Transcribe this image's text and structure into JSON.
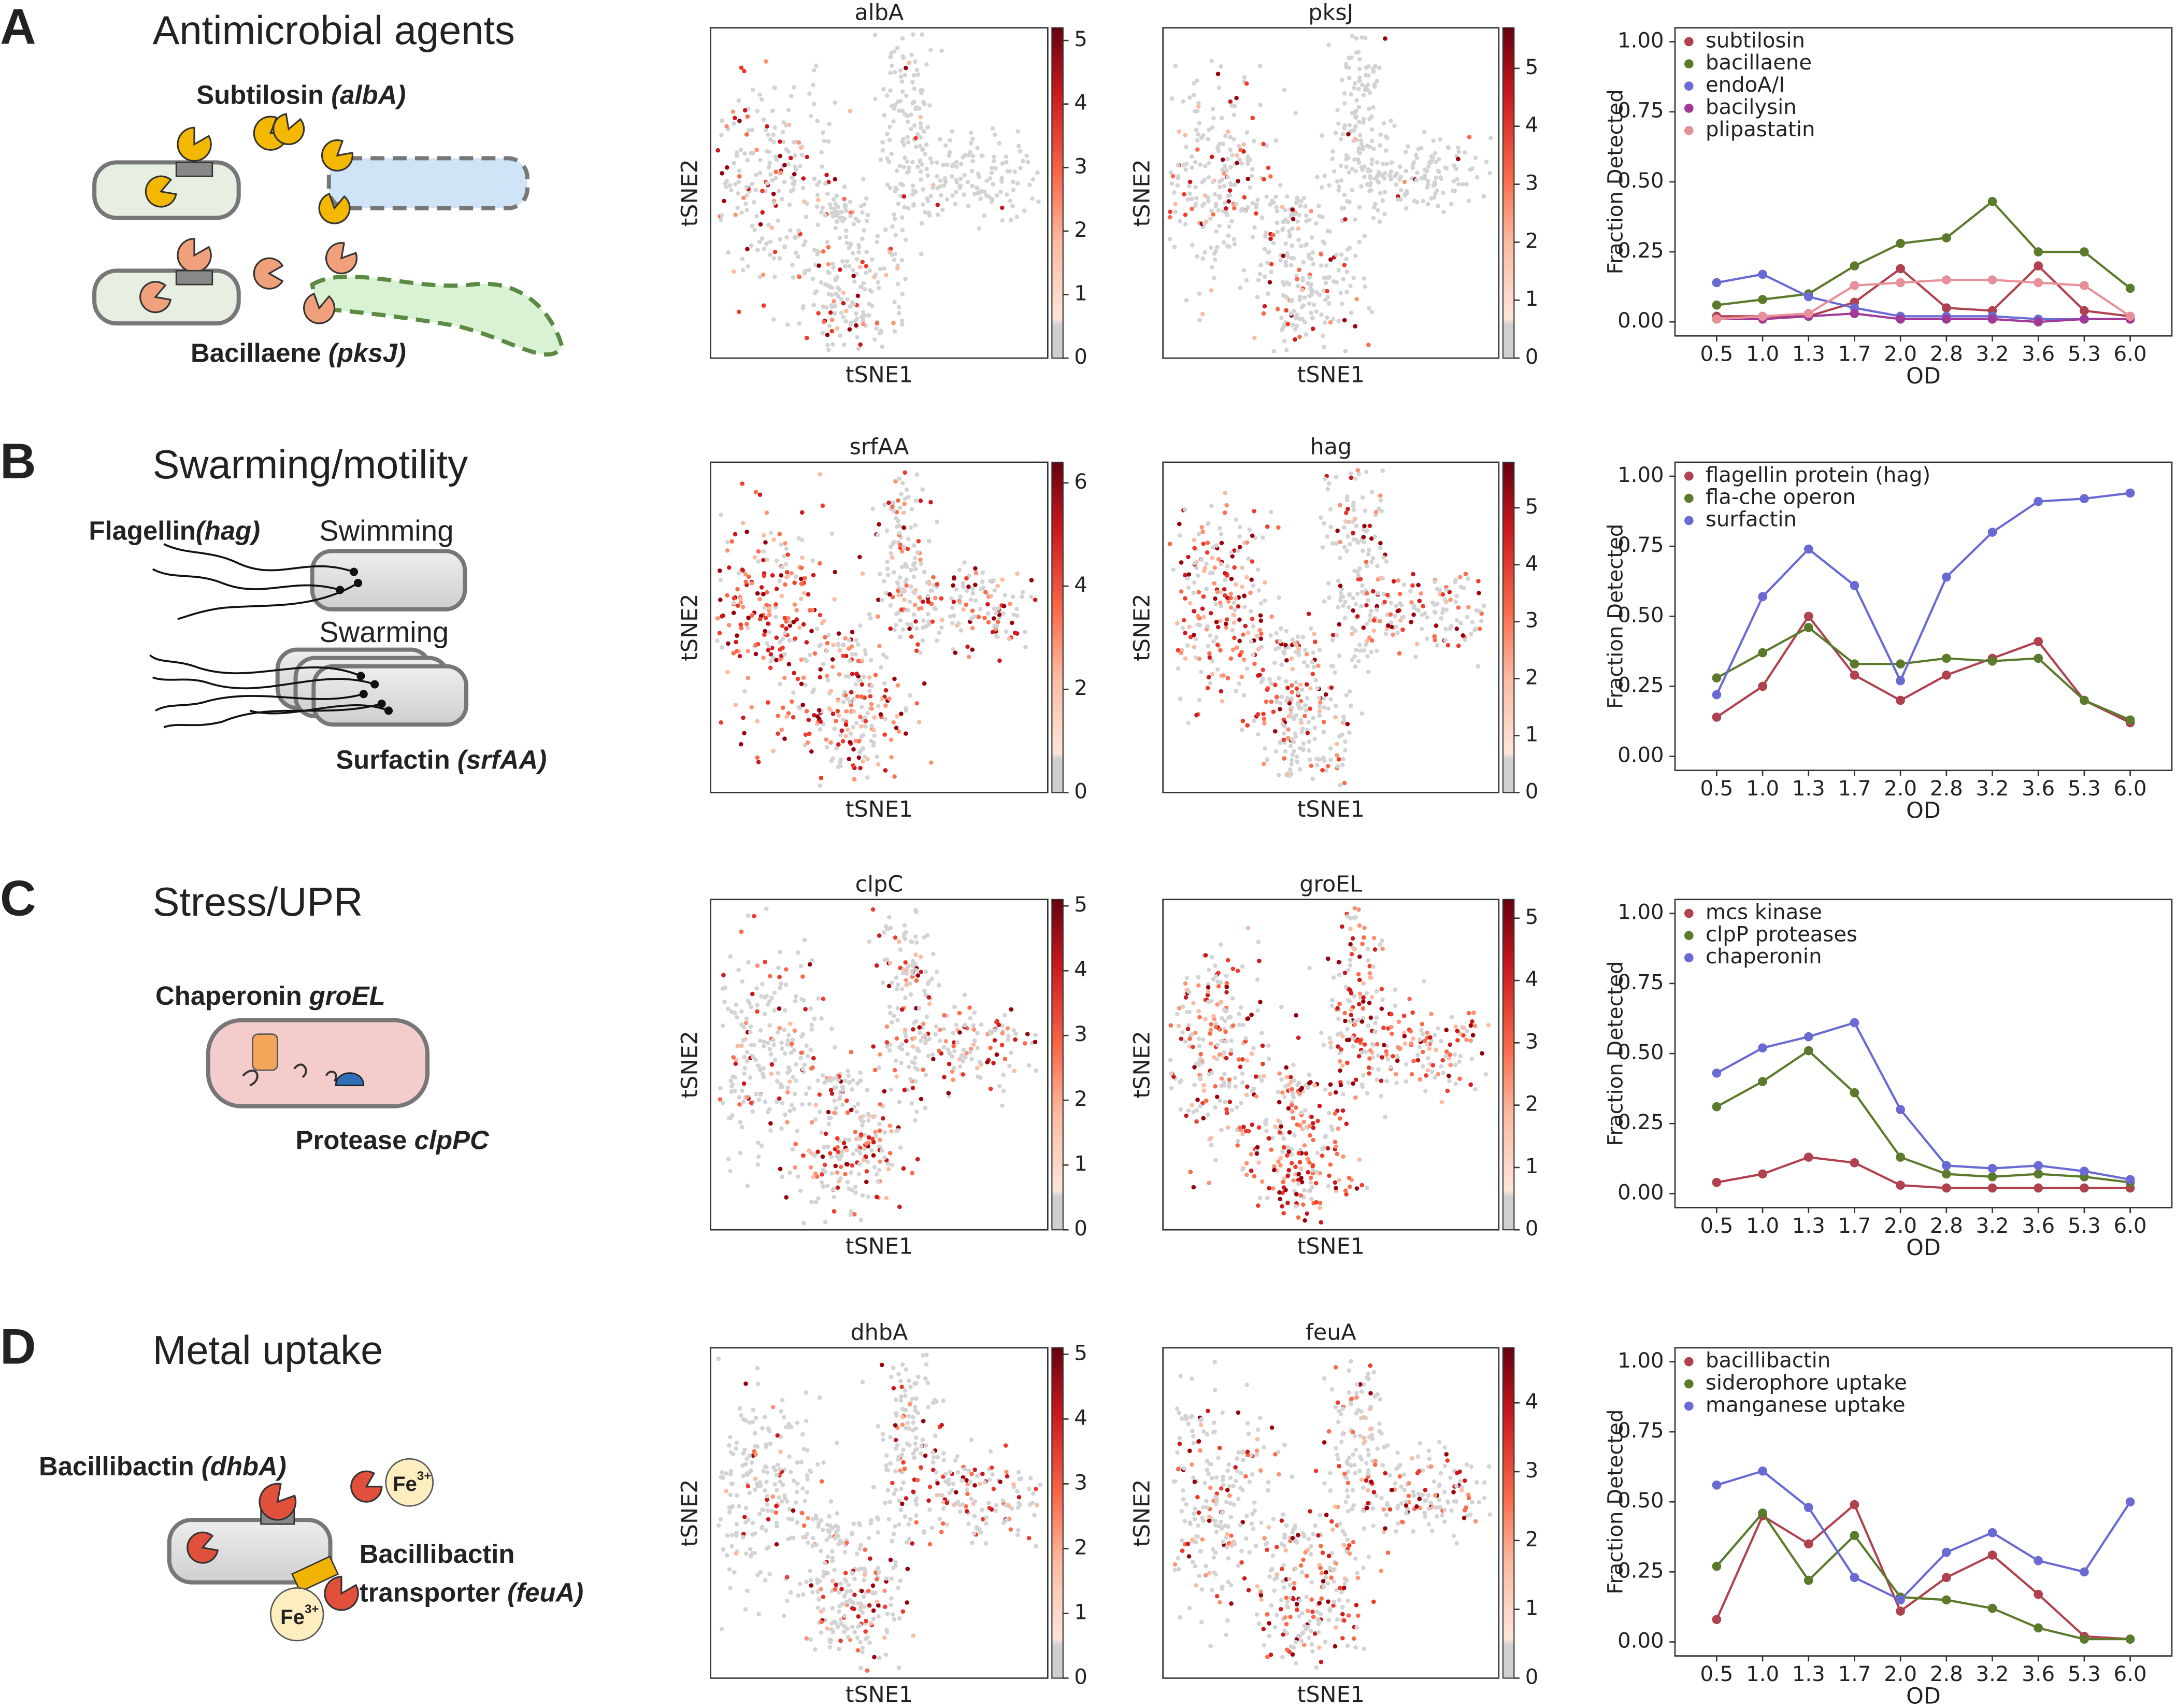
{
  "panels": [
    {
      "letter": "A",
      "title": "Antimicrobial agents",
      "diagram": [
        {
          "text": "Subtilosin",
          "gene": "(albA)"
        },
        {
          "text": "Bacillaene",
          "gene": "(pksJ)"
        }
      ],
      "embeddings": [
        {
          "title": "albA",
          "xlabel": "tSNE1",
          "ylabel": "tSNE2",
          "clim": [
            0,
            5.2
          ],
          "cticks": [
            0,
            1,
            2,
            3,
            4,
            5
          ]
        },
        {
          "title": "pksJ",
          "xlabel": "tSNE1",
          "ylabel": "tSNE2",
          "clim": [
            0,
            5.7
          ],
          "cticks": [
            0,
            1,
            2,
            3,
            4,
            5
          ]
        }
      ]
    },
    {
      "letter": "B",
      "title": "Swarming/motility",
      "diagram": [
        {
          "text": "Flagellin",
          "gene": "(hag)"
        },
        {
          "text": "Swimming"
        },
        {
          "text": "Swarming"
        },
        {
          "text": "Surfactin",
          "gene": "(srfAA)"
        }
      ],
      "embeddings": [
        {
          "title": "srfAA",
          "xlabel": "tSNE1",
          "ylabel": "tSNE2",
          "clim": [
            0,
            6.4
          ],
          "cticks": [
            0,
            2,
            4,
            6
          ]
        },
        {
          "title": "hag",
          "xlabel": "tSNE1",
          "ylabel": "tSNE2",
          "clim": [
            0,
            5.8
          ],
          "cticks": [
            0,
            1,
            2,
            3,
            4,
            5
          ]
        }
      ]
    },
    {
      "letter": "C",
      "title": "Stress/UPR",
      "diagram": [
        {
          "text": "Chaperonin",
          "gene": "groEL"
        },
        {
          "text": "Protease",
          "gene": "clpPC"
        }
      ],
      "embeddings": [
        {
          "title": "clpC",
          "xlabel": "tSNE1",
          "ylabel": "tSNE2",
          "clim": [
            0,
            5.1
          ],
          "cticks": [
            0,
            1,
            2,
            3,
            4,
            5
          ]
        },
        {
          "title": "groEL",
          "xlabel": "tSNE1",
          "ylabel": "tSNE2",
          "clim": [
            0,
            5.3
          ],
          "cticks": [
            0,
            1,
            2,
            3,
            4,
            5
          ]
        }
      ]
    },
    {
      "letter": "D",
      "title": "Metal uptake",
      "diagram": [
        {
          "text": "Bacillibactin",
          "gene": "(dhbA)"
        },
        {
          "base": "Fe",
          "sup": "3+"
        },
        {
          "base": "Fe",
          "sup": "3+"
        },
        {
          "line1": "Bacillibactin",
          "text": "transporter",
          "gene": "(feuA)"
        }
      ],
      "embeddings": [
        {
          "title": "dhbA",
          "xlabel": "tSNE1",
          "ylabel": "tSNE2",
          "clim": [
            0,
            5.1
          ],
          "cticks": [
            0,
            1,
            2,
            3,
            4,
            5
          ]
        },
        {
          "title": "feuA",
          "xlabel": "tSNE1",
          "ylabel": "tSNE2",
          "clim": [
            0,
            4.8
          ],
          "cticks": [
            0,
            1,
            2,
            3,
            4
          ]
        }
      ]
    }
  ],
  "chart_data": [
    {
      "type": "line",
      "xlabel": "OD",
      "ylabel": "Fraction Detected",
      "legend": "upper left",
      "categories": [
        "0.5",
        "1.0",
        "1.3",
        "1.7",
        "2.0",
        "2.8",
        "3.2",
        "3.6",
        "5.3",
        "6.0"
      ],
      "ylim": [
        -0.05,
        1.05
      ],
      "yticks": [
        {
          "value": 0,
          "label": "0.00"
        },
        0.25,
        {
          "value": 0.5,
          "label": "0.50"
        },
        0.75,
        {
          "value": 1,
          "label": "1.00"
        }
      ],
      "series": [
        {
          "name": "subtilosin",
          "color": "#b0414e",
          "values": [
            0.02,
            0.02,
            0.02,
            0.07,
            0.19,
            0.05,
            0.04,
            0.2,
            0.04,
            0.02
          ]
        },
        {
          "name": "bacillaene",
          "color": "#5b7a2c",
          "values": [
            0.06,
            0.08,
            0.1,
            0.2,
            0.28,
            0.3,
            0.43,
            0.25,
            0.25,
            0.12
          ]
        },
        {
          "name": "endoA/I",
          "color": "#6a6ad4",
          "values": [
            0.14,
            0.17,
            0.09,
            0.05,
            0.02,
            0.02,
            0.02,
            0.01,
            0.01,
            0.01
          ]
        },
        {
          "name": "bacilysin",
          "color": "#a03a98",
          "values": [
            0.01,
            0.01,
            0.02,
            0.03,
            0.01,
            0.01,
            0.01,
            0.0,
            0.01,
            0.01
          ]
        },
        {
          "name": "plipastatin",
          "color": "#e8909a",
          "values": [
            0.01,
            0.02,
            0.03,
            0.13,
            0.14,
            0.15,
            0.15,
            0.14,
            0.13,
            0.02
          ]
        }
      ]
    },
    {
      "type": "line",
      "xlabel": "OD",
      "ylabel": "Fraction Detected",
      "legend": "upper left",
      "categories": [
        "0.5",
        "1.0",
        "1.3",
        "1.7",
        "2.0",
        "2.8",
        "3.2",
        "3.6",
        "5.3",
        "6.0"
      ],
      "ylim": [
        -0.05,
        1.05
      ],
      "yticks": [
        {
          "value": 0,
          "label": "0.00"
        },
        0.25,
        {
          "value": 0.5,
          "label": "0.50"
        },
        0.75,
        {
          "value": 1,
          "label": "1.00"
        }
      ],
      "series": [
        {
          "name": "flagellin protein (hag)",
          "color": "#b0414e",
          "values": [
            0.14,
            0.25,
            0.5,
            0.29,
            0.2,
            0.29,
            0.35,
            0.41,
            0.2,
            0.12
          ]
        },
        {
          "name": "fla-che operon",
          "color": "#5b7a2c",
          "values": [
            0.28,
            0.37,
            0.46,
            0.33,
            0.33,
            0.35,
            0.34,
            0.35,
            0.2,
            0.13
          ]
        },
        {
          "name": "surfactin",
          "color": "#6a6ad4",
          "values": [
            0.22,
            0.57,
            0.74,
            0.61,
            0.27,
            0.64,
            0.8,
            0.91,
            0.92,
            0.94
          ]
        }
      ]
    },
    {
      "type": "line",
      "xlabel": "OD",
      "ylabel": "Fraction Detected",
      "legend": "upper left",
      "categories": [
        "0.5",
        "1.0",
        "1.3",
        "1.7",
        "2.0",
        "2.8",
        "3.2",
        "3.6",
        "5.3",
        "6.0"
      ],
      "ylim": [
        -0.05,
        1.05
      ],
      "yticks": [
        {
          "value": 0,
          "label": "0.00"
        },
        0.25,
        {
          "value": 0.5,
          "label": "0.50"
        },
        0.75,
        {
          "value": 1,
          "label": "1.00"
        }
      ],
      "series": [
        {
          "name": "mcs kinase",
          "color": "#b0414e",
          "values": [
            0.04,
            0.07,
            0.13,
            0.11,
            0.03,
            0.02,
            0.02,
            0.02,
            0.02,
            0.02
          ]
        },
        {
          "name": "clpP proteases",
          "color": "#5b7a2c",
          "values": [
            0.31,
            0.4,
            0.51,
            0.36,
            0.13,
            0.07,
            0.06,
            0.07,
            0.06,
            0.04
          ]
        },
        {
          "name": "chaperonin",
          "color": "#6a6ad4",
          "values": [
            0.43,
            0.52,
            0.56,
            0.61,
            0.3,
            0.1,
            0.09,
            0.1,
            0.08,
            0.05
          ]
        }
      ]
    },
    {
      "type": "line",
      "xlabel": "OD",
      "ylabel": "Fraction Detected",
      "legend": "upper left",
      "categories": [
        "0.5",
        "1.0",
        "1.3",
        "1.7",
        "2.0",
        "2.8",
        "3.2",
        "3.6",
        "5.3",
        "6.0"
      ],
      "ylim": [
        -0.05,
        1.05
      ],
      "yticks": [
        {
          "value": 0,
          "label": "0.00"
        },
        0.25,
        {
          "value": 0.5,
          "label": "0.50"
        },
        0.75,
        {
          "value": 1,
          "label": "1.00"
        }
      ],
      "series": [
        {
          "name": "bacillibactin",
          "color": "#b0414e",
          "values": [
            0.08,
            0.45,
            0.35,
            0.49,
            0.11,
            0.23,
            0.31,
            0.17,
            0.02,
            0.01
          ]
        },
        {
          "name": "siderophore uptake",
          "color": "#5b7a2c",
          "values": [
            0.27,
            0.46,
            0.22,
            0.38,
            0.16,
            0.15,
            0.12,
            0.05,
            0.01,
            0.01
          ]
        },
        {
          "name": "manganese uptake",
          "color": "#6a6ad4",
          "values": [
            0.56,
            0.61,
            0.48,
            0.23,
            0.15,
            0.32,
            0.39,
            0.29,
            0.25,
            0.5
          ]
        }
      ]
    }
  ]
}
